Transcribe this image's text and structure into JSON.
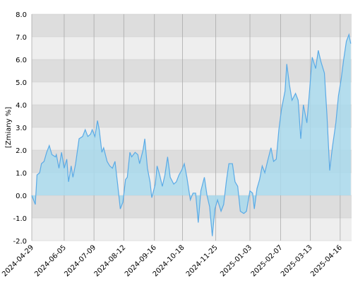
{
  "chart_data": {
    "type": "area",
    "y_label": "[Zmiany %]",
    "xlim": [
      "2024-04-29",
      "2025-04-29"
    ],
    "xticks": [
      "2024-04-29",
      "2024-06-05",
      "2024-07-09",
      "2024-08-12",
      "2024-09-16",
      "2024-10-18",
      "2024-11-25",
      "2025-01-03",
      "2025-02-07",
      "2025-03-13",
      "2025-04-16"
    ],
    "ylim": [
      -2,
      8
    ],
    "yticks": [
      {
        "value": -2,
        "label": "-2.0"
      },
      {
        "value": -1,
        "label": "-1.0"
      },
      {
        "value": 0,
        "label": "0.0"
      },
      {
        "value": 1,
        "label": "1.0"
      },
      {
        "value": 2,
        "label": "2.0"
      },
      {
        "value": 3,
        "label": "3.0"
      },
      {
        "value": 4,
        "label": "4.0"
      },
      {
        "value": 5,
        "label": "5.0"
      },
      {
        "value": 6,
        "label": "6.0"
      },
      {
        "value": 7,
        "label": "7.0"
      },
      {
        "value": 8,
        "label": "8.0"
      }
    ],
    "grid": true,
    "line_color": "#5aaae6",
    "fill_color": "#a9d9ec",
    "x": [
      "2024-04-29",
      "2024-05-03",
      "2024-05-05",
      "2024-05-08",
      "2024-05-10",
      "2024-05-13",
      "2024-05-16",
      "2024-05-19",
      "2024-05-22",
      "2024-05-26",
      "2024-05-27",
      "2024-05-30",
      "2024-06-02",
      "2024-06-05",
      "2024-06-08",
      "2024-06-10",
      "2024-06-13",
      "2024-06-15",
      "2024-06-18",
      "2024-06-22",
      "2024-06-26",
      "2024-06-29",
      "2024-07-02",
      "2024-07-05",
      "2024-07-07",
      "2024-07-10",
      "2024-07-13",
      "2024-07-15",
      "2024-07-18",
      "2024-07-20",
      "2024-07-24",
      "2024-07-27",
      "2024-07-30",
      "2024-08-02",
      "2024-08-05",
      "2024-08-08",
      "2024-08-11",
      "2024-08-14",
      "2024-08-16",
      "2024-08-19",
      "2024-08-21",
      "2024-08-25",
      "2024-08-28",
      "2024-08-30",
      "2024-09-03",
      "2024-09-05",
      "2024-09-08",
      "2024-09-11",
      "2024-09-13",
      "2024-09-17",
      "2024-09-19",
      "2024-09-22",
      "2024-09-25",
      "2024-09-28",
      "2024-10-01",
      "2024-10-04",
      "2024-10-08",
      "2024-10-11",
      "2024-10-14",
      "2024-10-17",
      "2024-10-20",
      "2024-10-23",
      "2024-10-27",
      "2024-10-30",
      "2024-11-02",
      "2024-11-05",
      "2024-11-08",
      "2024-11-12",
      "2024-11-15",
      "2024-11-18",
      "2024-11-21",
      "2024-11-24",
      "2024-11-27",
      "2024-12-01",
      "2024-12-04",
      "2024-12-07",
      "2024-12-10",
      "2024-12-14",
      "2024-12-17",
      "2024-12-20",
      "2024-12-23",
      "2024-12-27",
      "2024-12-30",
      "2025-01-03",
      "2025-01-06",
      "2025-01-08",
      "2025-01-11",
      "2025-01-14",
      "2025-01-17",
      "2025-01-20",
      "2025-01-23",
      "2025-01-27",
      "2025-01-30",
      "2025-02-02",
      "2025-02-05",
      "2025-02-08",
      "2025-02-12",
      "2025-02-14",
      "2025-02-17",
      "2025-02-20",
      "2025-02-24",
      "2025-02-27",
      "2025-03-02",
      "2025-03-05",
      "2025-03-09",
      "2025-03-12",
      "2025-03-15",
      "2025-03-19",
      "2025-03-22",
      "2025-03-25",
      "2025-03-29",
      "2025-04-01",
      "2025-04-04",
      "2025-04-07",
      "2025-04-11",
      "2025-04-14",
      "2025-04-17",
      "2025-04-20",
      "2025-04-23",
      "2025-04-26",
      "2025-04-28"
    ],
    "values": [
      0.0,
      -0.4,
      0.9,
      1.0,
      1.4,
      1.5,
      1.9,
      2.2,
      1.8,
      1.7,
      1.8,
      1.2,
      1.9,
      1.2,
      1.6,
      0.6,
      1.3,
      0.8,
      1.4,
      2.5,
      2.6,
      2.9,
      2.6,
      2.7,
      2.9,
      2.6,
      3.3,
      2.9,
      1.9,
      2.1,
      1.5,
      1.3,
      1.2,
      1.5,
      0.5,
      -0.6,
      -0.3,
      0.7,
      0.8,
      1.9,
      1.7,
      1.9,
      1.8,
      1.4,
      2.0,
      2.5,
      1.2,
      0.6,
      -0.1,
      0.5,
      1.3,
      0.9,
      0.4,
      0.9,
      1.7,
      0.8,
      0.5,
      0.6,
      0.9,
      1.1,
      1.4,
      0.8,
      -0.2,
      0.1,
      0.1,
      -1.2,
      0.2,
      0.8,
      0.0,
      -0.5,
      -1.8,
      -0.6,
      -0.2,
      -0.7,
      -0.4,
      0.6,
      1.4,
      1.4,
      0.6,
      0.4,
      -0.7,
      -0.8,
      -0.7,
      0.2,
      0.1,
      -0.6,
      0.3,
      0.7,
      1.3,
      1.0,
      1.5,
      2.1,
      1.5,
      1.6,
      2.9,
      3.8,
      4.6,
      5.8,
      4.9,
      4.2,
      4.5,
      4.2,
      2.5,
      4.0,
      3.2,
      4.6,
      6.1,
      5.6,
      6.4,
      5.9,
      5.4,
      3.5,
      1.1,
      2.1,
      3.2,
      4.4,
      5.1,
      6.0,
      6.8,
      7.1,
      6.7
    ]
  }
}
